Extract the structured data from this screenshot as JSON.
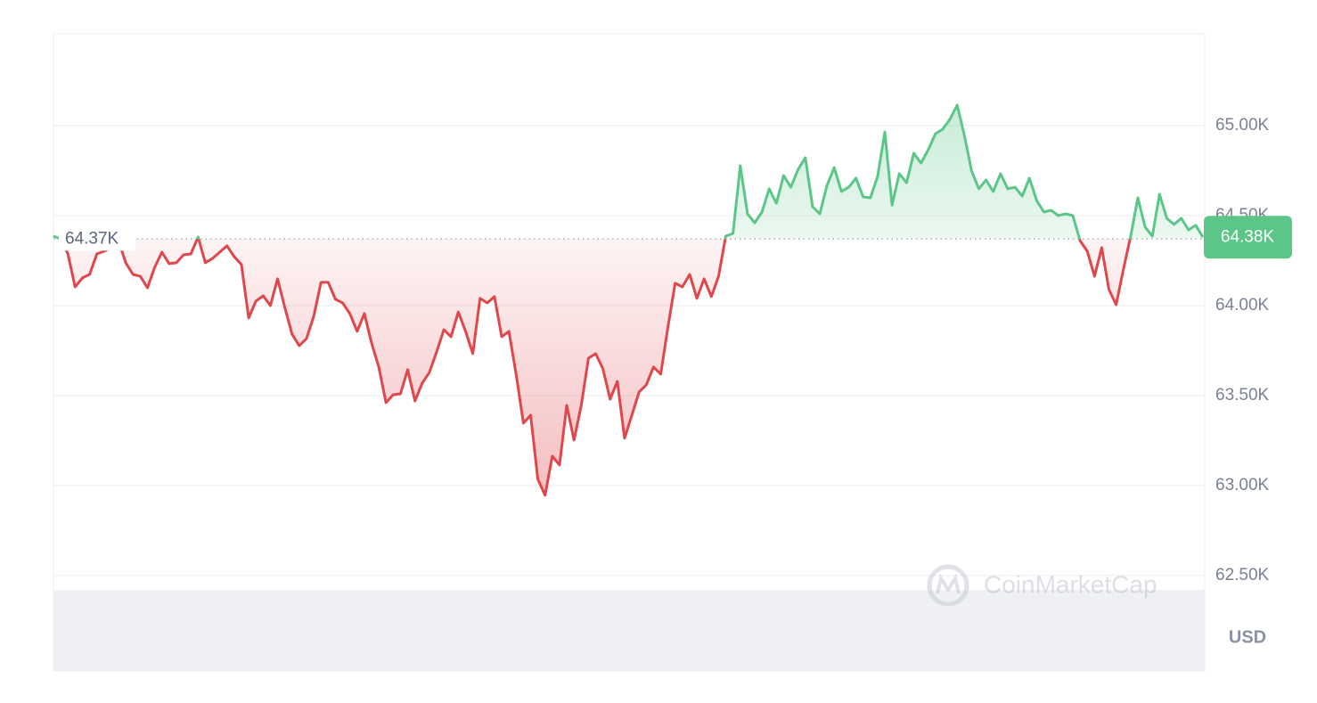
{
  "chart_data": {
    "type": "line",
    "values": [
      64386,
      64371,
      64287,
      64104,
      64154,
      64173,
      64287,
      64302,
      64322,
      64361,
      64238,
      64173,
      64163,
      64099,
      64213,
      64297,
      64233,
      64238,
      64282,
      64287,
      64381,
      64238,
      64262,
      64297,
      64332,
      64272,
      64228,
      63931,
      64025,
      64055,
      64000,
      64149,
      63990,
      63842,
      63777,
      63817,
      63941,
      64129,
      64129,
      64035,
      64015,
      63956,
      63857,
      63956,
      63792,
      63659,
      63461,
      63505,
      63510,
      63644,
      63470,
      63569,
      63629,
      63743,
      63866,
      63827,
      63965,
      63857,
      63733,
      64040,
      64015,
      64050,
      63827,
      63857,
      63619,
      63347,
      63391,
      63035,
      62946,
      63163,
      63114,
      63446,
      63253,
      63446,
      63708,
      63733,
      63649,
      63480,
      63579,
      63263,
      63391,
      63520,
      63560,
      63659,
      63619,
      63881,
      64124,
      64104,
      64173,
      64040,
      64149,
      64050,
      64163,
      64386,
      64401,
      64777,
      64510,
      64460,
      64520,
      64649,
      64569,
      64723,
      64658,
      64757,
      64822,
      64550,
      64510,
      64668,
      64767,
      64634,
      64658,
      64708,
      64604,
      64599,
      64718,
      64965,
      64559,
      64733,
      64683,
      64847,
      64792,
      64866,
      64955,
      64980,
      65035,
      65114,
      64946,
      64748,
      64649,
      64698,
      64634,
      64733,
      64649,
      64658,
      64609,
      64708,
      64584,
      64520,
      64530,
      64500,
      64510,
      64500,
      64361,
      64302,
      64163,
      64322,
      64089,
      64005,
      64203,
      64386,
      64599,
      64436,
      64386,
      64619,
      64485,
      64451,
      64485,
      64421,
      64446,
      64380
    ],
    "reference": {
      "value": 64370,
      "label": "64.37K"
    },
    "current_price": {
      "value": 64380,
      "label": "64.38K"
    },
    "up_color": "#5cc689",
    "down_color": "#e0474c",
    "ylim": [
      61970,
      65510
    ],
    "yticks": [
      {
        "value": 62500,
        "label": "62.50K"
      },
      {
        "value": 63000,
        "label": "63.00K"
      },
      {
        "value": 63500,
        "label": "63.50K"
      },
      {
        "value": 64000,
        "label": "64.00K"
      },
      {
        "value": 64500,
        "label": "64.50K"
      },
      {
        "value": 65000,
        "label": "65.00K"
      }
    ],
    "grid": true,
    "currency": "USD",
    "watermark": "CoinMarketCap"
  }
}
